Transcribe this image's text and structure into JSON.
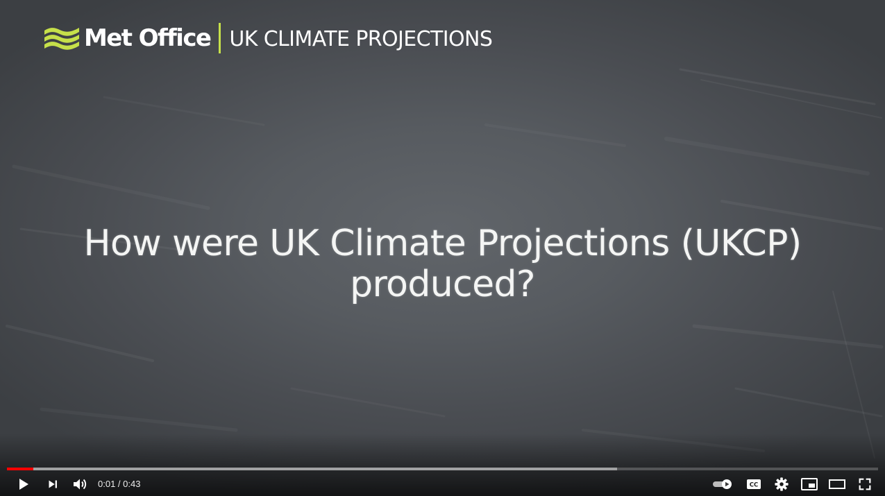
{
  "brand": {
    "logo_icon": "met-office-waves-icon",
    "name": "Met Office",
    "subtitle": "UK CLIMATE PROJECTIONS",
    "accent_color": "#c6e04a"
  },
  "video": {
    "headline_lines": [
      "How were UK Climate Projections (UKCP)",
      "produced?"
    ]
  },
  "player": {
    "current_time": "0:01",
    "separator": " / ",
    "duration": "0:43",
    "progress": {
      "played_fraction": 0.03,
      "buffered_fraction": 0.7,
      "played_color": "#ff0000"
    },
    "controls": {
      "play": "play-icon",
      "next": "next-icon",
      "volume": "volume-icon",
      "autoplay": "autoplay-toggle-icon",
      "captions": "cc-icon",
      "captions_label": "CC",
      "settings": "gear-icon",
      "miniplayer": "miniplayer-icon",
      "theater": "theater-mode-icon",
      "fullscreen": "fullscreen-icon"
    }
  }
}
